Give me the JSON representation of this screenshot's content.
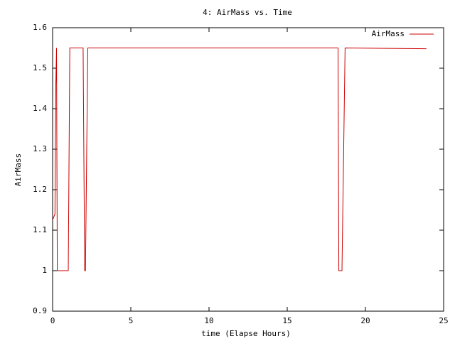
{
  "chart_data": {
    "type": "line",
    "title": "4: AirMass vs. Time",
    "x_label": "time (Elapse Hours)",
    "y_label": "AirMass",
    "x": [
      0,
      0.15,
      0.2,
      0.25,
      0.3,
      1.0,
      1.1,
      1.95,
      2.05,
      2.1,
      2.25,
      18.25,
      18.3,
      18.5,
      18.7,
      23.9
    ],
    "series": [
      {
        "name": "AirMass",
        "color": "#cc0000",
        "values": [
          1.125,
          1.14,
          1.45,
          1.55,
          1.0,
          1.0,
          1.55,
          1.55,
          1.0,
          1.0,
          1.55,
          1.55,
          1.0,
          1.0,
          1.55,
          1.548
        ]
      }
    ],
    "xlim": [
      0,
      25
    ],
    "xticks": [
      0,
      5,
      10,
      15,
      20,
      25
    ],
    "ylim": [
      0.9,
      1.6
    ],
    "yticks": [
      0.9,
      1,
      1.1,
      1.2,
      1.3,
      1.4,
      1.5,
      1.6
    ],
    "grid": false,
    "legend": "top-right"
  }
}
